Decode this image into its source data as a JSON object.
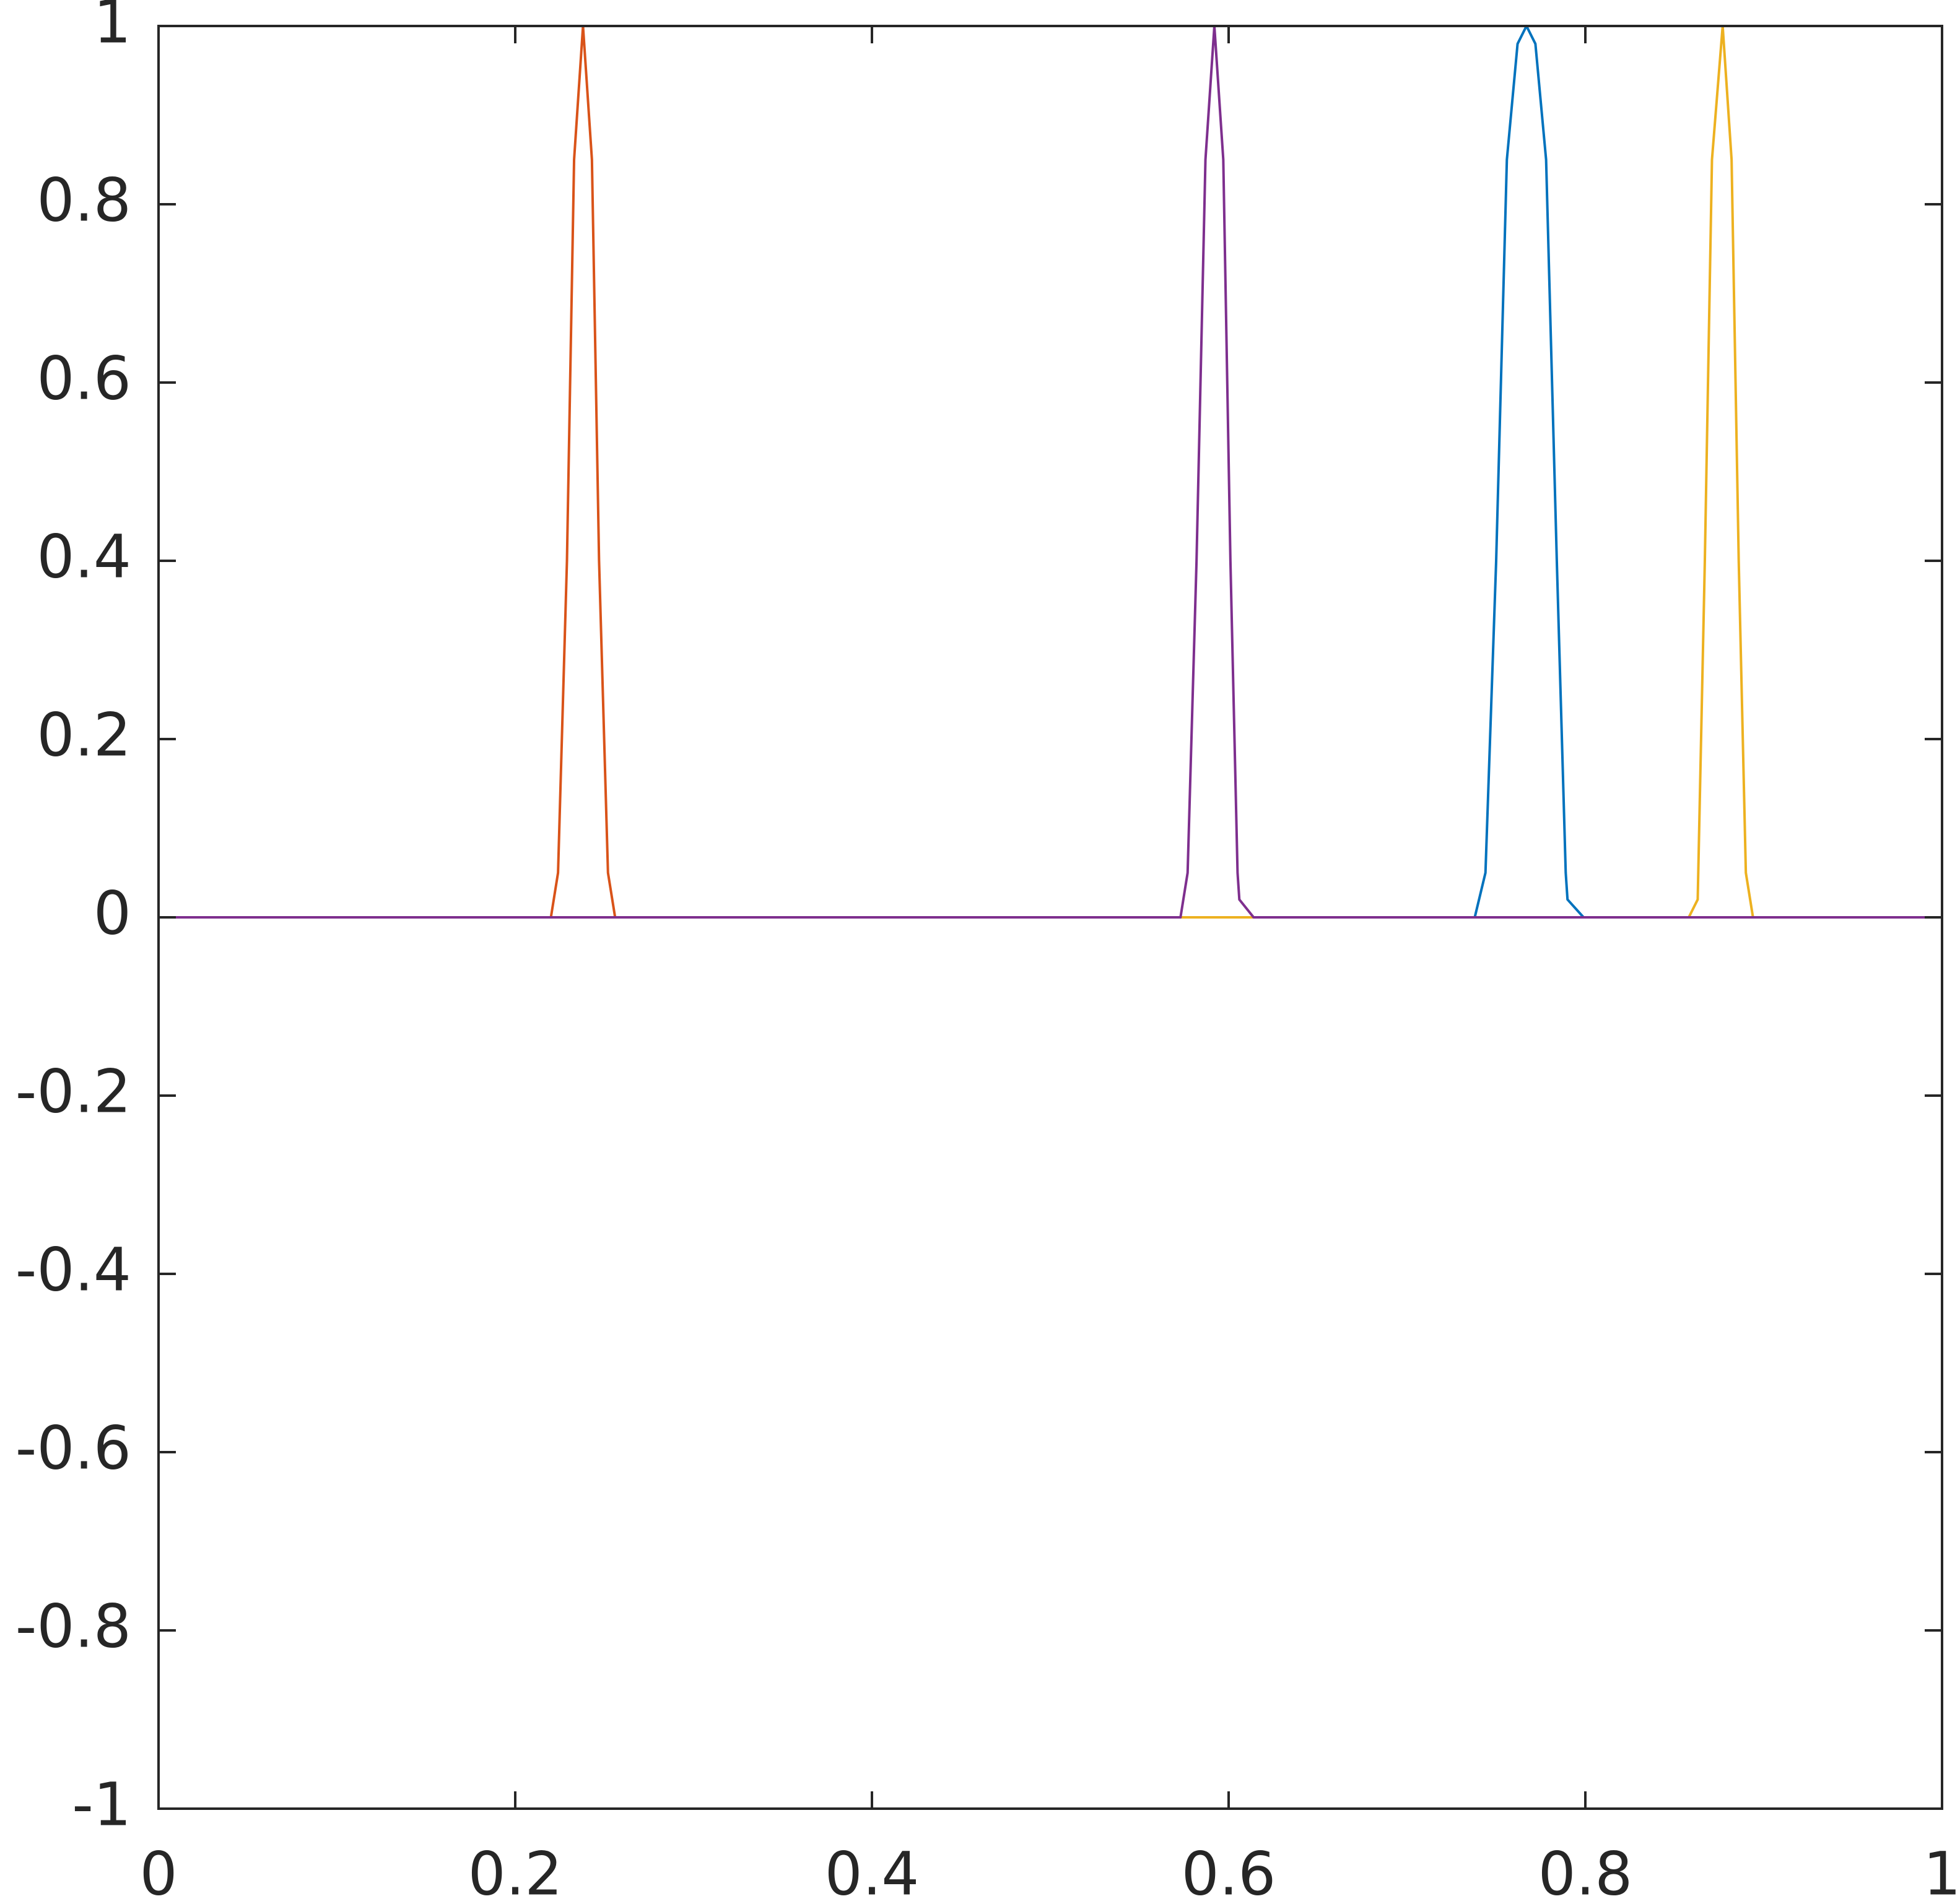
{
  "chart_data": {
    "type": "line",
    "xlim": [
      0,
      1
    ],
    "xticks": [
      0,
      0.2,
      0.4,
      0.6,
      0.8,
      1
    ],
    "ylim": [
      -1,
      1
    ],
    "yticks": [
      -1,
      -0.8,
      -0.6,
      -0.4,
      -0.2,
      0,
      0.2,
      0.4,
      0.6,
      0.8,
      1
    ],
    "series": [
      {
        "color": "#0072BD",
        "x": [
          0,
          0.738,
          0.744,
          0.75,
          0.756,
          0.762,
          0.767,
          0.772,
          0.778,
          0.784,
          0.789,
          0.79,
          0.799,
          1
        ],
        "values": [
          0,
          0,
          0.05,
          0.4,
          0.85,
          0.98,
          1,
          0.98,
          0.85,
          0.4,
          0.05,
          0.02,
          0,
          0
        ]
      },
      {
        "color": "#D95319",
        "x": [
          0,
          0.22,
          0.224,
          0.229,
          0.233,
          0.238,
          0.243,
          0.247,
          0.252,
          0.256,
          1
        ],
        "values": [
          0,
          0,
          0.05,
          0.4,
          0.85,
          1,
          0.85,
          0.4,
          0.05,
          0,
          0
        ]
      },
      {
        "color": "#EDB120",
        "x": [
          0,
          0.858,
          0.863,
          0.867,
          0.871,
          0.877,
          0.882,
          0.886,
          0.89,
          0.894,
          1
        ],
        "values": [
          0,
          0,
          0.02,
          0.4,
          0.85,
          1,
          0.85,
          0.4,
          0.05,
          0,
          0
        ]
      },
      {
        "color": "#7E2F8E",
        "x": [
          0,
          0.573,
          0.577,
          0.582,
          0.587,
          0.592,
          0.597,
          0.601,
          0.605,
          0.606,
          0.614,
          1
        ],
        "values": [
          0,
          0,
          0.05,
          0.4,
          0.85,
          1,
          0.85,
          0.4,
          0.05,
          0.02,
          0,
          0
        ]
      }
    ]
  }
}
